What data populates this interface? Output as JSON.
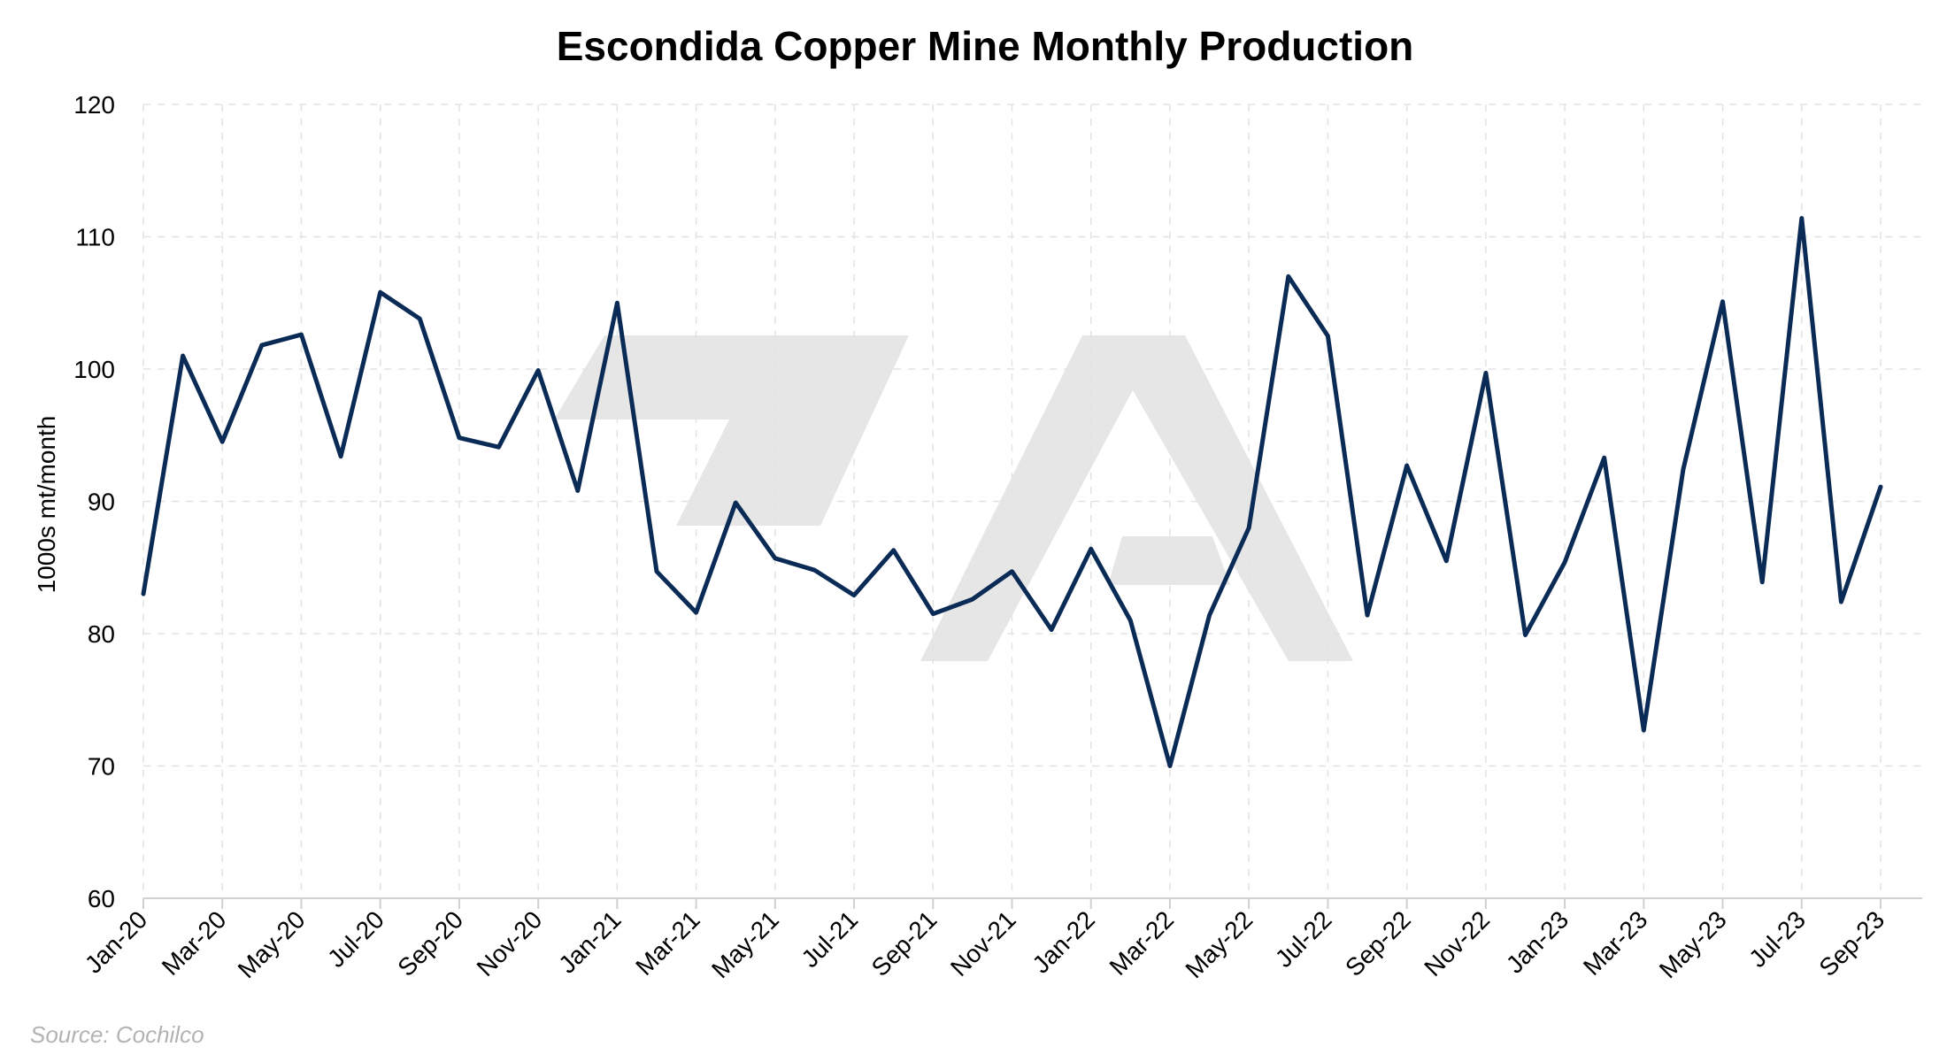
{
  "chart_data": {
    "type": "line",
    "title": "Escondida Copper Mine Monthly Production",
    "xlabel": "",
    "ylabel": "1000s mt/month",
    "ylim": [
      60,
      120
    ],
    "yticks": [
      60,
      70,
      80,
      90,
      100,
      110,
      120
    ],
    "x": [
      "Jan-20",
      "Feb-20",
      "Mar-20",
      "Apr-20",
      "May-20",
      "Jun-20",
      "Jul-20",
      "Aug-20",
      "Sep-20",
      "Oct-20",
      "Nov-20",
      "Dec-20",
      "Jan-21",
      "Feb-21",
      "Mar-21",
      "Apr-21",
      "May-21",
      "Jun-21",
      "Jul-21",
      "Aug-21",
      "Sep-21",
      "Oct-21",
      "Nov-21",
      "Dec-21",
      "Jan-22",
      "Feb-22",
      "Mar-22",
      "Apr-22",
      "May-22",
      "Jun-22",
      "Jul-22",
      "Aug-22",
      "Sep-22",
      "Oct-22",
      "Nov-22",
      "Dec-22",
      "Jan-23",
      "Feb-23",
      "Mar-23",
      "Apr-23",
      "May-23",
      "Jun-23",
      "Jul-23",
      "Aug-23",
      "Sep-23"
    ],
    "tick_labels": [
      "Jan-20",
      "Mar-20",
      "May-20",
      "Jul-20",
      "Sep-20",
      "Nov-20",
      "Jan-21",
      "Mar-21",
      "May-21",
      "Jul-21",
      "Sep-21",
      "Nov-21",
      "Jan-22",
      "Mar-22",
      "May-22",
      "Jul-22",
      "Sep-22",
      "Nov-22",
      "Jan-23",
      "Mar-23",
      "May-23",
      "Jul-23",
      "Sep-23"
    ],
    "series": [
      {
        "values": [
          83.0,
          101.0,
          94.5,
          101.8,
          102.6,
          93.4,
          105.8,
          103.8,
          94.8,
          94.1,
          99.9,
          90.8,
          105.0,
          84.7,
          81.6,
          89.9,
          85.7,
          84.8,
          82.9,
          86.3,
          81.5,
          82.6,
          84.7,
          80.3,
          86.4,
          81.0,
          70.0,
          81.4,
          88.0,
          107.0,
          102.5,
          81.4,
          92.7,
          85.5,
          99.7,
          79.9,
          85.4,
          93.3,
          72.7,
          92.4,
          105.1,
          83.9,
          111.4,
          82.4,
          91.1
        ],
        "color": "#0b2b57"
      }
    ],
    "grid": true,
    "legend": "none"
  },
  "source": "Source: Cochilco",
  "colors": {
    "line": "#0b2b57",
    "watermark": "#e6e6e6",
    "grid": "#e3e3e3"
  }
}
